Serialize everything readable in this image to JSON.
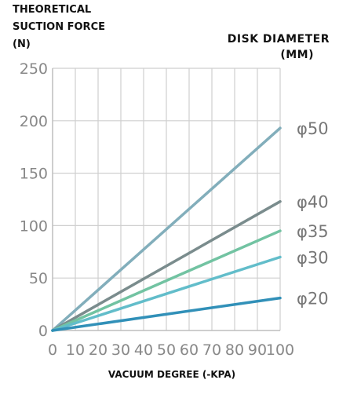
{
  "chart_data": {
    "type": "line",
    "ylabel": [
      "THEORETICAL",
      "SUCTION FORCE",
      "(N)"
    ],
    "legend_title": [
      "DISK DIAMETER",
      "(MM)"
    ],
    "xlabel": "VACUUM DEGREE (-KPA)",
    "xlim": [
      0,
      100
    ],
    "ylim": [
      0,
      250
    ],
    "x_ticks": [
      0,
      10,
      20,
      30,
      40,
      50,
      60,
      70,
      80,
      90,
      100
    ],
    "y_ticks": [
      0,
      50,
      100,
      150,
      200,
      250
    ],
    "grid": true,
    "series": [
      {
        "name": "φ50",
        "color": "#82aebb",
        "points": [
          [
            0,
            0
          ],
          [
            100,
            193
          ]
        ]
      },
      {
        "name": "φ40",
        "color": "#7a8c8d",
        "points": [
          [
            0,
            0
          ],
          [
            100,
            123
          ]
        ]
      },
      {
        "name": "φ35",
        "color": "#72c3a2",
        "points": [
          [
            0,
            0
          ],
          [
            100,
            95
          ]
        ]
      },
      {
        "name": "φ30",
        "color": "#62bdca",
        "points": [
          [
            0,
            0
          ],
          [
            100,
            70
          ]
        ]
      },
      {
        "name": "φ20",
        "color": "#3190b8",
        "points": [
          [
            0,
            0
          ],
          [
            100,
            31
          ]
        ]
      }
    ]
  }
}
